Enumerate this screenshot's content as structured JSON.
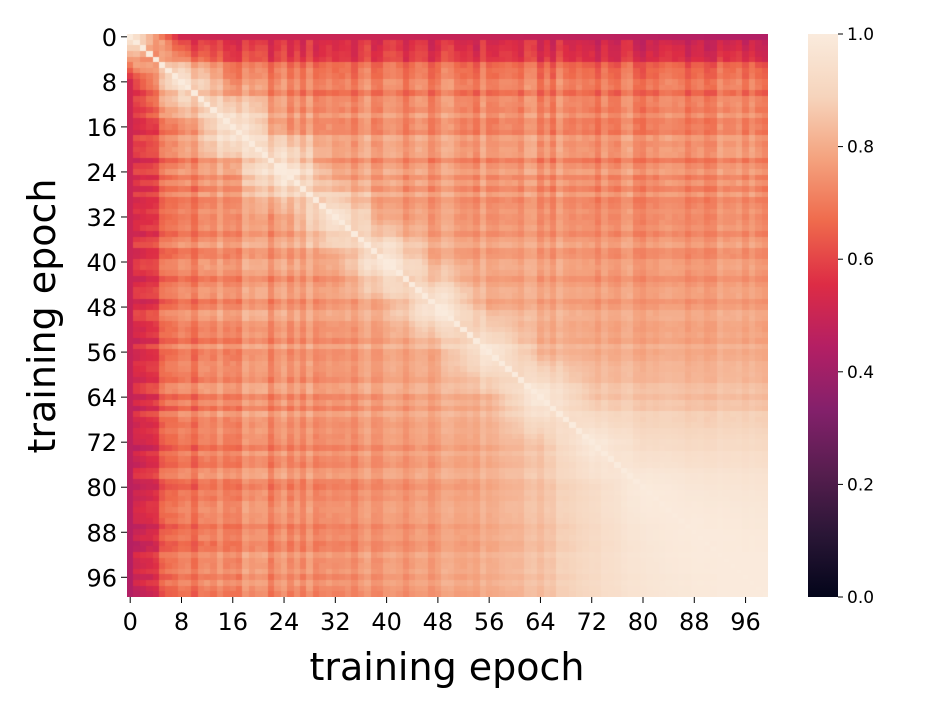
{
  "chart_data": {
    "type": "heatmap",
    "title": "",
    "xlabel": "training epoch",
    "ylabel": "training epoch",
    "n": 100,
    "x_range": [
      0,
      99
    ],
    "y_range": [
      0,
      99
    ],
    "y_axis_inverted": true,
    "x_tick_labels": [
      "0",
      "8",
      "16",
      "24",
      "32",
      "40",
      "48",
      "56",
      "64",
      "72",
      "80",
      "88",
      "96"
    ],
    "y_tick_labels": [
      "0",
      "8",
      "16",
      "24",
      "32",
      "40",
      "48",
      "56",
      "64",
      "72",
      "80",
      "88",
      "96"
    ],
    "colorbar": {
      "range": [
        0.0,
        1.0
      ],
      "tick_labels": [
        "0.0",
        "0.2",
        "0.4",
        "0.6",
        "0.8",
        "1.0"
      ],
      "colormap": "rocket",
      "colormap_stops": [
        "#03051a",
        "#2a1636",
        "#571e4f",
        "#84206b",
        "#b41f64",
        "#dd2c45",
        "#ef6a4c",
        "#f4a27e",
        "#f6d4bc",
        "#faebdd"
      ]
    },
    "description_of_values": "Symmetric similarity matrix between training epochs; diagonal = 1.0; epoch 0 row/column lowest (~0.40-0.50); bulk ~0.72-0.80; epochs beyond ~70 approach 0.95-1.0 among each other.",
    "sampled_values": {
      "epochs": [
        0,
        8,
        16,
        24,
        32,
        40,
        48,
        56,
        64,
        72,
        80,
        88,
        96,
        99
      ],
      "matrix": [
        [
          1.0,
          0.52,
          0.5,
          0.5,
          0.5,
          0.5,
          0.49,
          0.49,
          0.48,
          0.47,
          0.46,
          0.45,
          0.44,
          0.44
        ],
        [
          0.52,
          1.0,
          0.74,
          0.73,
          0.72,
          0.72,
          0.72,
          0.72,
          0.71,
          0.71,
          0.7,
          0.7,
          0.7,
          0.7
        ],
        [
          0.5,
          0.74,
          1.0,
          0.76,
          0.75,
          0.74,
          0.74,
          0.73,
          0.73,
          0.72,
          0.72,
          0.72,
          0.72,
          0.72
        ],
        [
          0.5,
          0.73,
          0.76,
          1.0,
          0.77,
          0.76,
          0.75,
          0.75,
          0.74,
          0.74,
          0.73,
          0.73,
          0.73,
          0.73
        ],
        [
          0.5,
          0.72,
          0.75,
          0.77,
          1.0,
          0.78,
          0.77,
          0.76,
          0.75,
          0.75,
          0.74,
          0.74,
          0.74,
          0.74
        ],
        [
          0.5,
          0.72,
          0.74,
          0.76,
          0.78,
          1.0,
          0.79,
          0.78,
          0.77,
          0.76,
          0.75,
          0.75,
          0.75,
          0.75
        ],
        [
          0.49,
          0.72,
          0.74,
          0.75,
          0.77,
          0.79,
          1.0,
          0.8,
          0.79,
          0.78,
          0.77,
          0.77,
          0.77,
          0.77
        ],
        [
          0.49,
          0.72,
          0.73,
          0.75,
          0.76,
          0.78,
          0.8,
          1.0,
          0.82,
          0.81,
          0.8,
          0.8,
          0.8,
          0.8
        ],
        [
          0.48,
          0.71,
          0.73,
          0.74,
          0.75,
          0.77,
          0.79,
          0.82,
          1.0,
          0.86,
          0.85,
          0.84,
          0.84,
          0.84
        ],
        [
          0.47,
          0.71,
          0.72,
          0.74,
          0.75,
          0.76,
          0.78,
          0.81,
          0.86,
          1.0,
          0.93,
          0.92,
          0.92,
          0.92
        ],
        [
          0.46,
          0.7,
          0.72,
          0.73,
          0.74,
          0.75,
          0.77,
          0.8,
          0.85,
          0.93,
          1.0,
          0.98,
          0.97,
          0.97
        ],
        [
          0.45,
          0.7,
          0.72,
          0.73,
          0.74,
          0.75,
          0.77,
          0.8,
          0.84,
          0.92,
          0.98,
          1.0,
          0.99,
          0.99
        ],
        [
          0.44,
          0.7,
          0.72,
          0.73,
          0.74,
          0.75,
          0.77,
          0.8,
          0.84,
          0.92,
          0.97,
          0.99,
          1.0,
          1.0
        ],
        [
          0.44,
          0.7,
          0.72,
          0.73,
          0.74,
          0.75,
          0.77,
          0.8,
          0.84,
          0.92,
          0.97,
          0.99,
          1.0,
          1.0
        ]
      ]
    }
  }
}
